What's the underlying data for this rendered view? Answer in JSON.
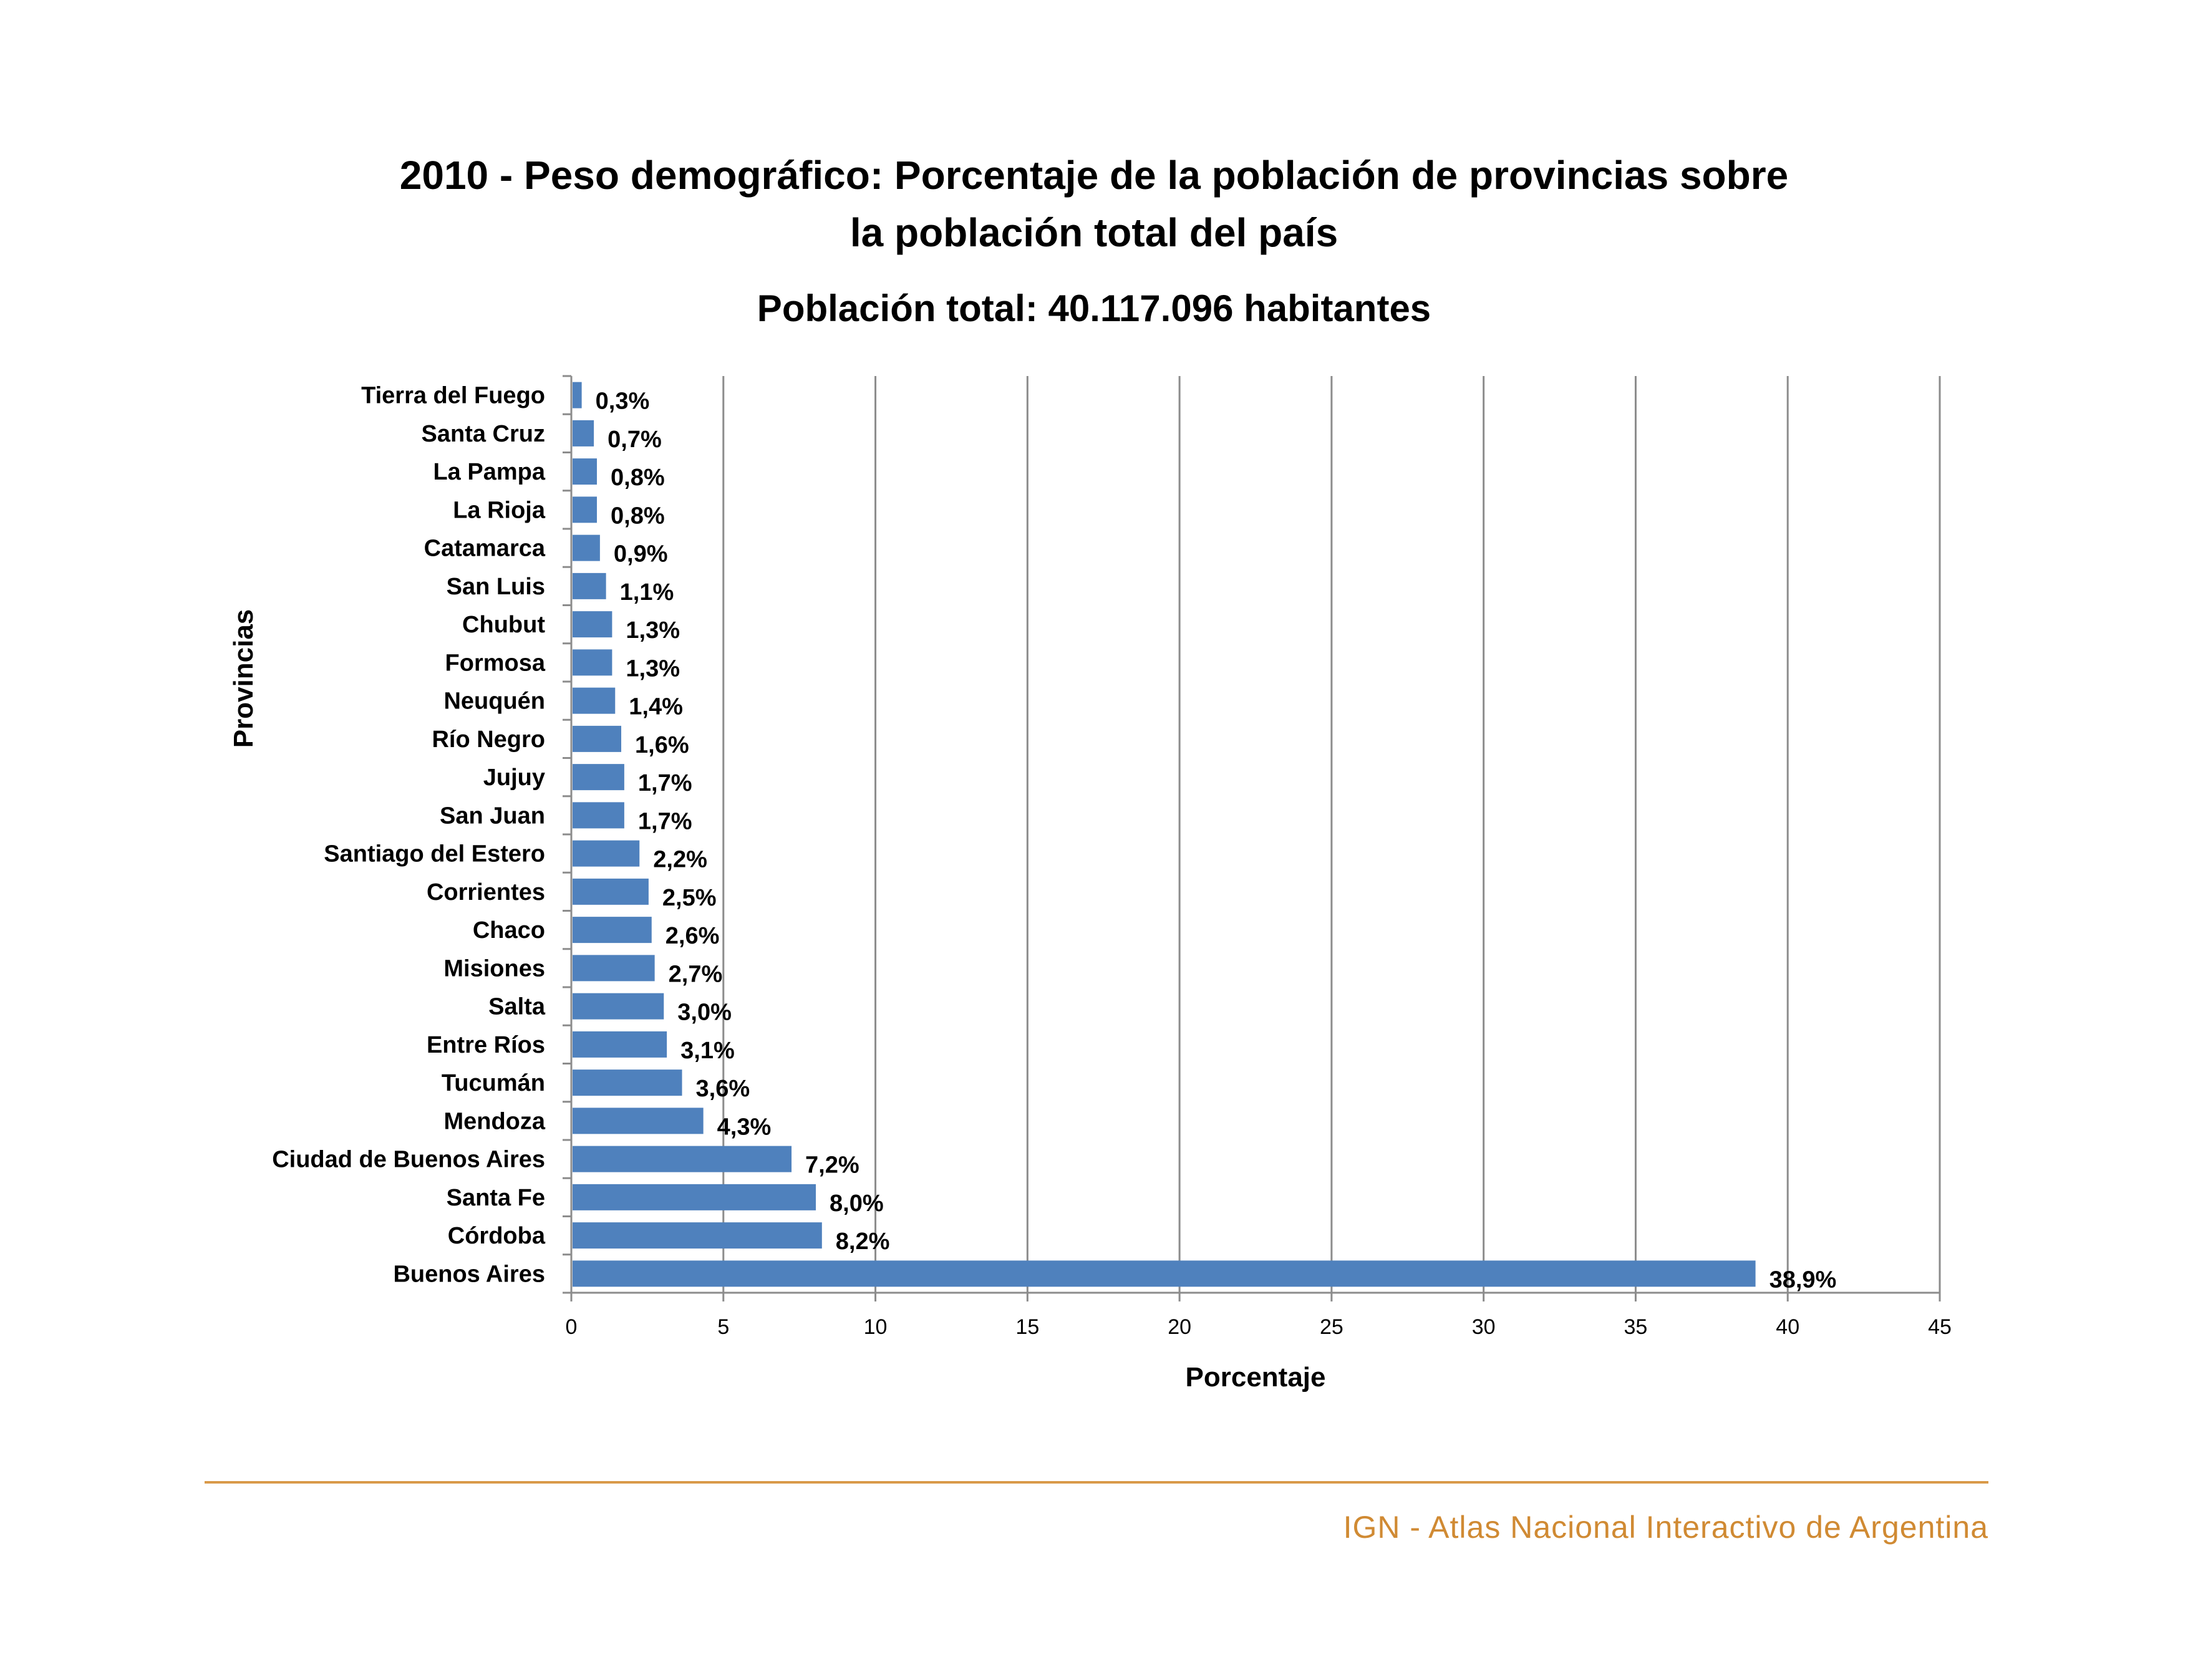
{
  "chart_data": {
    "type": "bar",
    "orientation": "horizontal",
    "title_lines": [
      "2010 - Peso demográfico: Porcentaje de la población de provincias sobre",
      "la población total del país"
    ],
    "subtitle": "Población total: 40.117.096 habitantes",
    "xlabel": "Porcentaje",
    "ylabel": "Provincias",
    "xlim": [
      0,
      45
    ],
    "xticks": [
      "0",
      "5",
      "10",
      "15",
      "20",
      "25",
      "30",
      "35",
      "40",
      "45"
    ],
    "grid": "vertical",
    "bar_color": "#4f81bd",
    "categories": [
      "Tierra del Fuego",
      "Santa Cruz",
      "La Pampa",
      "La Rioja",
      "Catamarca",
      "San Luis",
      "Chubut",
      "Formosa",
      "Neuquén",
      "Río Negro",
      "Jujuy",
      "San Juan",
      "Santiago del Estero",
      "Corrientes",
      "Chaco",
      "Misiones",
      "Salta",
      "Entre Ríos",
      "Tucumán",
      "Mendoza",
      "Ciudad de Buenos Aires",
      "Santa Fe",
      "Córdoba",
      "Buenos Aires"
    ],
    "values": [
      0.3,
      0.7,
      0.8,
      0.8,
      0.9,
      1.1,
      1.3,
      1.3,
      1.4,
      1.6,
      1.7,
      1.7,
      2.2,
      2.5,
      2.6,
      2.7,
      3.0,
      3.1,
      3.6,
      4.3,
      7.2,
      8.0,
      8.2,
      38.9
    ],
    "labels": [
      "0,3%",
      "0,7%",
      "0,8%",
      "0,8%",
      "0,9%",
      "1,1%",
      "1,3%",
      "1,3%",
      "1,4%",
      "1,6%",
      "1,7%",
      "1,7%",
      "2,2%",
      "2,5%",
      "2,6%",
      "2,7%",
      "3,0%",
      "3,1%",
      "3,6%",
      "4,3%",
      "7,2%",
      "8,0%",
      "8,2%",
      "38,9%"
    ]
  },
  "footer": {
    "text": "IGN - Atlas Nacional Interactivo de Argentina",
    "color": "#d08a33"
  }
}
